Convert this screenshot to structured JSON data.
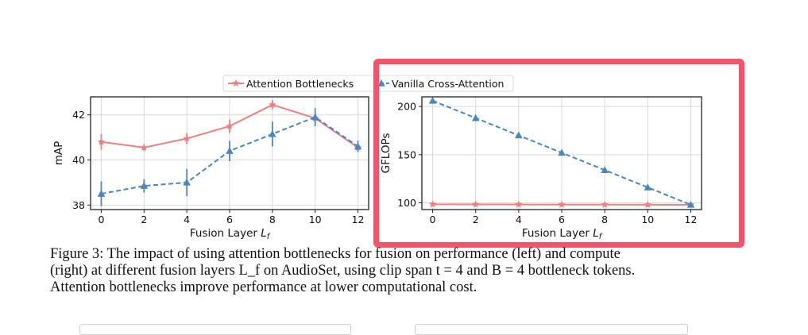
{
  "figure": {
    "legend": [
      "Attention Bottlenecks",
      "Vanilla Cross-Attention"
    ],
    "caption_lines": [
      "Figure 3: The impact of using attention bottlenecks for fusion on performance (left) and compute",
      "(right) at different fusion layers L_f on AudioSet, using clip span t = 4 and B = 4 bottleneck tokens.",
      "Attention bottlenecks improve performance at lower computational cost."
    ]
  },
  "colors": {
    "bottleneck": "#f08080",
    "cross": "#4a86c0",
    "highlight": "#f2556a"
  },
  "chart_data": [
    {
      "type": "line",
      "x": [
        0,
        2,
        4,
        6,
        8,
        10,
        12
      ],
      "series": [
        {
          "name": "Attention Bottlenecks",
          "values": [
            40.8,
            40.55,
            40.95,
            41.5,
            42.45,
            41.85,
            40.55
          ],
          "err": [
            0.35,
            0.15,
            0.25,
            0.3,
            0.2,
            0.25,
            0.15
          ]
        },
        {
          "name": "Vanilla Cross-Attention",
          "values": [
            38.5,
            38.85,
            39.0,
            40.4,
            41.15,
            41.9,
            40.6
          ],
          "err": [
            0.55,
            0.3,
            0.6,
            0.45,
            0.55,
            0.4,
            0.25
          ]
        }
      ],
      "xlabel": "Fusion Layer L_f",
      "ylabel": "mAP",
      "xticks": [
        "0",
        "2",
        "4",
        "6",
        "8",
        "10",
        "12"
      ],
      "yticks": [
        "38",
        "40",
        "42"
      ],
      "xlim": [
        -0.5,
        12.5
      ],
      "ylim": [
        37.8,
        42.8
      ]
    },
    {
      "type": "line",
      "x": [
        0,
        2,
        4,
        6,
        8,
        10,
        12
      ],
      "series": [
        {
          "name": "Attention Bottlenecks",
          "values": [
            98.5,
            98.4,
            98.3,
            98.2,
            98.1,
            98.0,
            97.9
          ]
        },
        {
          "name": "Vanilla Cross-Attention",
          "values": [
            206,
            188,
            170,
            152,
            134,
            116,
            98
          ]
        }
      ],
      "xlabel": "Fusion Layer L_f",
      "ylabel": "GFLOPs",
      "xticks": [
        "0",
        "2",
        "4",
        "6",
        "8",
        "10",
        "12"
      ],
      "yticks": [
        "100",
        "150",
        "200"
      ],
      "xlim": [
        -0.5,
        12.5
      ],
      "ylim": [
        93,
        210
      ]
    }
  ]
}
